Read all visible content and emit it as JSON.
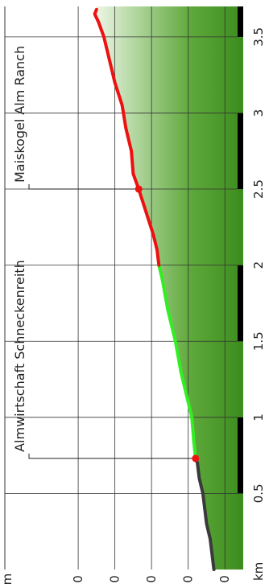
{
  "chart_data": {
    "type": "area",
    "orientation": "rotated-90-clockwise",
    "xlabel": "km",
    "ylabel": "m",
    "xlim": [
      0,
      3.7
    ],
    "x_ticks": [
      {
        "value": 0.5,
        "label": "0.5"
      },
      {
        "value": 1,
        "label": "1"
      },
      {
        "value": 1.5,
        "label": "1.5"
      },
      {
        "value": 2,
        "label": "2"
      },
      {
        "value": 2.5,
        "label": "2.5"
      },
      {
        "value": 3,
        "label": "3"
      },
      {
        "value": 3.5,
        "label": "3.5"
      }
    ],
    "elevation_ticks": [
      {
        "value": 0.1,
        "label": "0"
      },
      {
        "value": 0.3,
        "label": "0"
      },
      {
        "value": 0.5,
        "label": "0"
      },
      {
        "value": 0.7,
        "label": "0"
      },
      {
        "value": 0.9,
        "label": "0"
      }
    ],
    "elevation_range": [
      0,
      1.3
    ],
    "grid": true,
    "series": [
      {
        "color": "#3a3a3a",
        "points": [
          [
            0,
            0.16
          ],
          [
            0.1,
            0.17
          ],
          [
            0.2,
            0.18
          ],
          [
            0.3,
            0.2
          ],
          [
            0.4,
            0.21
          ],
          [
            0.5,
            0.22
          ],
          [
            0.6,
            0.24
          ],
          [
            0.7,
            0.25
          ],
          [
            0.73,
            0.26
          ]
        ]
      },
      {
        "color": "#33ee22",
        "points": [
          [
            0.73,
            0.26
          ],
          [
            0.85,
            0.27
          ],
          [
            1.0,
            0.28
          ],
          [
            1.15,
            0.31
          ],
          [
            1.3,
            0.34
          ],
          [
            1.5,
            0.37
          ],
          [
            1.7,
            0.41
          ],
          [
            1.9,
            0.44
          ],
          [
            2.0,
            0.46
          ]
        ]
      },
      {
        "color": "#ee1111",
        "points": [
          [
            2.0,
            0.46
          ],
          [
            2.1,
            0.47
          ],
          [
            2.2,
            0.49
          ],
          [
            2.35,
            0.53
          ],
          [
            2.5,
            0.57
          ],
          [
            2.6,
            0.6
          ],
          [
            2.75,
            0.61
          ],
          [
            2.9,
            0.64
          ],
          [
            3.05,
            0.66
          ],
          [
            3.2,
            0.7
          ],
          [
            3.35,
            0.73
          ],
          [
            3.5,
            0.76
          ],
          [
            3.6,
            0.79
          ],
          [
            3.65,
            0.81
          ],
          [
            3.68,
            0.8
          ]
        ]
      }
    ],
    "annotations": [
      {
        "label": "Almwirtschaft Schneckenreith",
        "x": 0.73,
        "elevation": 0.26
      },
      {
        "label": "Maiskogel Alm Ranch",
        "x": 2.5,
        "elevation": 0.57
      }
    ]
  },
  "colors": {
    "fill_base": "#3c8c1e",
    "fill_top": "#e8f4e0",
    "grid": "#333333",
    "marker": "#ee1111"
  }
}
